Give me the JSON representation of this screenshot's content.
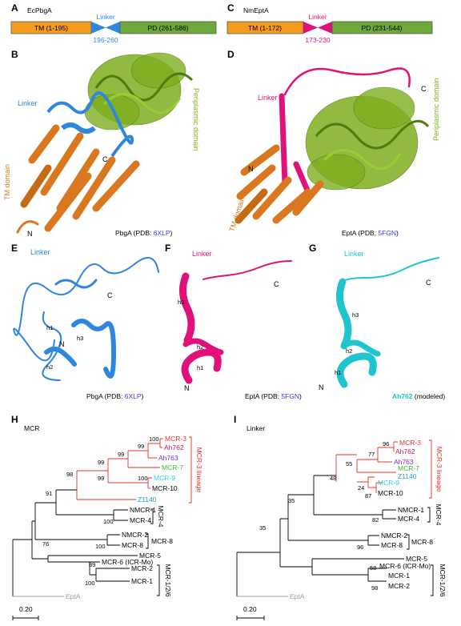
{
  "panels": {
    "A": {
      "letter": "A",
      "protein": "EcPbgA",
      "tm": "TM (1-195)",
      "linker": "Linker",
      "linker_range": "196-260",
      "pd": "PD (261-586)"
    },
    "B": {
      "letter": "B",
      "linker": "Linker",
      "periplasmic": "Periplasmic domain",
      "tm": "TM domain",
      "c": "C",
      "n": "N",
      "caption_prefix": "PbgA (PDB: ",
      "pdb": "6XLP",
      "caption_suffix": ")"
    },
    "C": {
      "letter": "C",
      "protein": "NmEptA",
      "tm": "TM (1-172)",
      "linker": "Linker",
      "linker_range": "173-230",
      "pd": "PD (231-544)"
    },
    "D": {
      "letter": "D",
      "linker": "Linker",
      "periplasmic": "Periplasmic  domain",
      "tm": "TM domain",
      "c": "C",
      "n": "N",
      "caption_prefix": "EptA (PDB: ",
      "pdb": "5FGN",
      "caption_suffix": ")"
    },
    "E": {
      "letter": "E",
      "linker": "Linker",
      "c": "C",
      "n": "N",
      "h1": "h1",
      "h2": "h2",
      "h3": "h3",
      "caption_prefix": "PbgA (PDB: ",
      "pdb": "6XLP",
      "caption_suffix": ")"
    },
    "F": {
      "letter": "F",
      "linker": "Linker",
      "c": "C",
      "n": "N",
      "h1": "h1",
      "h2": "h2",
      "h3": "h3",
      "caption_prefix": "EptA (PDB: ",
      "pdb": "5FGN",
      "caption_suffix": ")"
    },
    "G": {
      "letter": "G",
      "linker": "Linker",
      "c": "C",
      "n": "N",
      "h1": "h1",
      "h2": "h2",
      "h3": "h3",
      "caption_bold": "Ah762",
      "caption_rest": " (modeled)"
    },
    "H": {
      "letter": "H",
      "title": "MCR",
      "scale": "0.20",
      "leaves": {
        "mcr3": "MCR-3",
        "ah762": "Ah762",
        "ah763": "Ah763",
        "mcr7": "MCR-7",
        "mcr9": "MCR-9",
        "mcr10": "MCR-10",
        "z1140": "Z1140",
        "nmcr1": "NMCR-1",
        "mcr4": "MCR-4",
        "nmcr2": "NMCR-2",
        "mcr8": "MCR-8",
        "mcr5": "MCR-5",
        "mcr6": "MCR-6 (ICR-Mo)",
        "mcr2": "MCR-2",
        "mcr1": "MCR-1",
        "epta": "EptA"
      },
      "bootstrap": {
        "b100a": "100",
        "b99a": "99",
        "b99b": "99",
        "b99c": "99",
        "b100b": "100",
        "b99d": "99",
        "b98": "98",
        "b100c": "100",
        "b91": "91",
        "b100d": "100",
        "b76": "76",
        "b89": "89",
        "b100e": "100"
      },
      "groups": {
        "lineage": "MCR-3 lineage",
        "g4": "MCR-4",
        "g8": "MCR-8",
        "g126": "MCR-1/2/6"
      }
    },
    "I": {
      "letter": "I",
      "title": "Linker",
      "scale": "0.20",
      "leaves": {
        "mcr3": "MCR-3",
        "ah762": "Ah762",
        "ah763": "Ah763",
        "mcr7": "MCR-7",
        "z1140": "Z1140",
        "mcr9": "MCR-9",
        "mcr10": "MCR-10",
        "nmcr1": "NMCR-1",
        "mcr4": "MCR-4",
        "nmcr2": "NMCR-2",
        "mcr8": "MCR-8",
        "mcr5": "MCR-5",
        "mcr6": "MCR-6 (ICR-Mo)",
        "mcr1": "MCR-1",
        "mcr2": "MCR-2",
        "epta": "EptA"
      },
      "bootstrap": {
        "b96": "96",
        "b77": "77",
        "b55": "55",
        "b24": "24",
        "b87": "87",
        "b48": "48",
        "b35a": "35",
        "b82": "82",
        "b96b": "96",
        "b35b": "35",
        "b58": "58",
        "b98": "98"
      },
      "groups": {
        "lineage": "MCR-3 lineage",
        "g4": "MCR-4",
        "g8": "MCR-8",
        "g126": "MCR-1/2/6"
      }
    }
  },
  "colors": {
    "tm": "#F39C1F",
    "pd": "#6FA83A",
    "pbga_linker": "#2E86DE",
    "epta_linker": "#E0127A",
    "ah762_linker": "#1FC4CC",
    "orange_ribbon": "#D9781E",
    "green_ribbon": "#7FAE1F",
    "red": "#E8302A",
    "ah762": "#C2185B",
    "ah763": "#7B2FD0",
    "mcr7": "#2EBD2E",
    "mcr9": "#2FD1E0",
    "z1140": "#1E9BE0",
    "gray": "#9E9E9E",
    "pdb_blue": "#3B3BD6"
  }
}
